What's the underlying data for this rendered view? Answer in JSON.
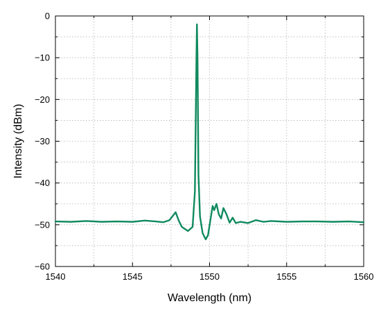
{
  "chart_data": {
    "type": "line",
    "title": "",
    "xlabel": "Wavelength (nm)",
    "ylabel": "Intensity (dBm)",
    "xlim": [
      1540,
      1560
    ],
    "ylim": [
      -60,
      0
    ],
    "x_ticks": [
      1540,
      1545,
      1550,
      1555,
      1560
    ],
    "y_ticks": [
      0,
      -10,
      -20,
      -30,
      -40,
      -50,
      -60
    ],
    "x_tick_labels": [
      "1540",
      "1545",
      "1550",
      "1555",
      "1560"
    ],
    "y_tick_labels": [
      "0",
      "−10",
      "−20",
      "−30",
      "−40",
      "−50",
      "−60"
    ],
    "grid": true,
    "legend": "none",
    "line_color": "#108a5e",
    "series": [
      {
        "x": [
          1540.0,
          1541.0,
          1542.0,
          1543.0,
          1544.0,
          1545.0,
          1545.8,
          1546.5,
          1547.0,
          1547.4,
          1547.8,
          1548.0,
          1548.2,
          1548.6,
          1548.9,
          1549.05,
          1549.15,
          1549.18,
          1549.22,
          1549.28,
          1549.38,
          1549.55,
          1549.75,
          1549.9,
          1550.05,
          1550.2,
          1550.3,
          1550.45,
          1550.6,
          1550.75,
          1550.9,
          1551.1,
          1551.3,
          1551.5,
          1551.7,
          1552.0,
          1552.5,
          1553.0,
          1553.5,
          1554.0,
          1555.0,
          1556.0,
          1557.0,
          1558.0,
          1559.0,
          1560.0
        ],
        "y": [
          -49.2,
          -49.3,
          -49.1,
          -49.3,
          -49.2,
          -49.3,
          -49.0,
          -49.2,
          -49.4,
          -48.9,
          -47.0,
          -49.0,
          -50.5,
          -51.5,
          -50.5,
          -42.0,
          -10.0,
          -2.0,
          -10.0,
          -38.0,
          -48.0,
          -52.0,
          -53.5,
          -52.5,
          -49.0,
          -45.5,
          -46.5,
          -45.0,
          -47.5,
          -48.5,
          -46.0,
          -47.5,
          -49.5,
          -48.3,
          -49.6,
          -49.3,
          -49.6,
          -48.9,
          -49.3,
          -49.1,
          -49.3,
          -49.2,
          -49.2,
          -49.3,
          -49.2,
          -49.4
        ]
      }
    ]
  }
}
